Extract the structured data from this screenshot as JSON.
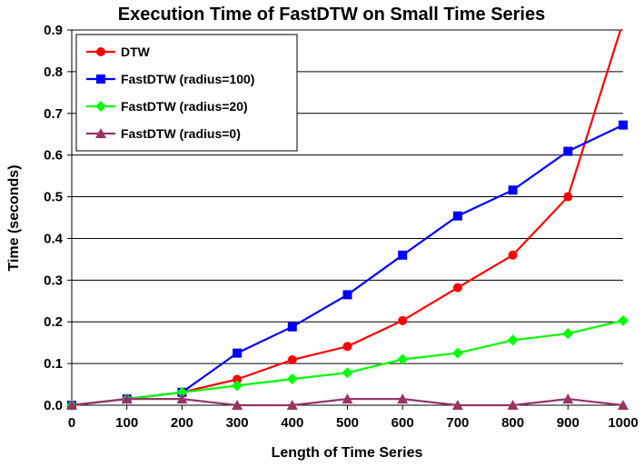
{
  "chart_data": {
    "type": "line",
    "title": "Execution Time of FastDTW on Small Time Series",
    "xlabel": "Length of Time Series",
    "ylabel": "Time (seconds)",
    "x": [
      0,
      100,
      200,
      300,
      400,
      500,
      600,
      700,
      800,
      900,
      1000
    ],
    "xlim": [
      0,
      1000
    ],
    "ylim": [
      0,
      0.9
    ],
    "x_ticks": [
      "0",
      "100",
      "200",
      "300",
      "400",
      "500",
      "600",
      "700",
      "800",
      "900",
      "1000"
    ],
    "y_ticks": [
      "0.0",
      "0.1",
      "0.2",
      "0.3",
      "0.4",
      "0.5",
      "0.6",
      "0.7",
      "0.8",
      "0.9"
    ],
    "grid": "horizontal",
    "legend_position": "top-left",
    "series": [
      {
        "name": "DTW",
        "color": "#ff0000",
        "marker": "circle",
        "values": [
          0,
          0.015,
          0.031,
          0.062,
          0.109,
          0.141,
          0.203,
          0.282,
          0.36,
          0.5,
          0.92
        ]
      },
      {
        "name": "FastDTW (radius=100)",
        "color": "#0000ff",
        "marker": "square",
        "values": [
          0,
          0.015,
          0.031,
          0.125,
          0.188,
          0.265,
          0.36,
          0.454,
          0.516,
          0.609,
          0.672
        ]
      },
      {
        "name": "FastDTW (radius=20)",
        "color": "#00ff00",
        "marker": "diamond",
        "values": [
          0,
          0.015,
          0.031,
          0.047,
          0.063,
          0.078,
          0.11,
          0.125,
          0.156,
          0.172,
          0.203
        ]
      },
      {
        "name": "FastDTW (radius=0)",
        "color": "#993366",
        "marker": "triangle",
        "values": [
          0,
          0.015,
          0.015,
          0,
          0,
          0.015,
          0.015,
          0,
          0,
          0.015,
          0
        ]
      }
    ]
  }
}
